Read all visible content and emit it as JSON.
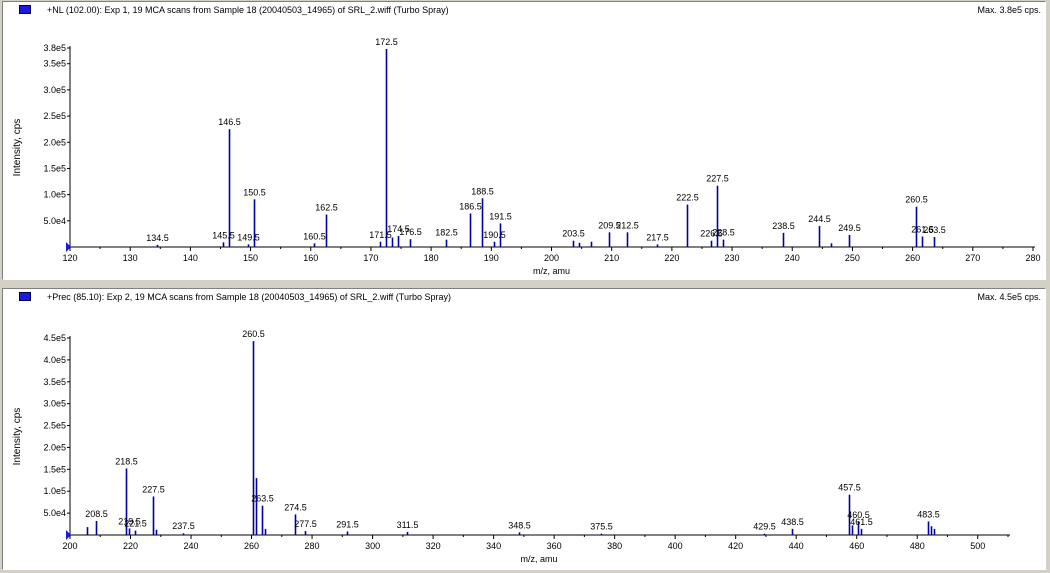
{
  "colors": {
    "peak": "#0000a0",
    "axis": "#000000",
    "label": "#000000",
    "marker": "#1a1ae0"
  },
  "panels": [
    {
      "header": {
        "title": "+NL (102.00): Exp 1, 19 MCA scans from Sample 18 (20040503_14965) of SRL_2.wiff (Turbo Spray)",
        "max": "Max. 3.8e5 cps."
      },
      "ylabel": "Intensity, cps",
      "xlabel": "m/z, amu"
    },
    {
      "header": {
        "title": "+Prec (85.10): Exp 2, 19 MCA scans from Sample 18 (20040503_14965) of SRL_2.wiff (Turbo Spray)",
        "max": "Max. 4.5e5 cps."
      },
      "ylabel": "Intensity, cps",
      "xlabel": "m/z, amu"
    }
  ],
  "chart_data": [
    {
      "type": "bar",
      "title": "+NL (102.00): Exp 1, 19 MCA scans from Sample 18 (20040503_14965) of SRL_2.wiff (Turbo Spray)",
      "xlabel": "m/z, amu",
      "ylabel": "Intensity, cps",
      "xlim": [
        120,
        280
      ],
      "ylim": [
        0,
        380000
      ],
      "x_ticks": [
        120,
        130,
        140,
        150,
        160,
        170,
        180,
        190,
        200,
        210,
        220,
        230,
        240,
        250,
        260,
        270,
        280
      ],
      "y_ticks": [
        {
          "v": 50000,
          "label": "5.0e4"
        },
        {
          "v": 100000,
          "label": "1.0e5"
        },
        {
          "v": 150000,
          "label": "1.5e5"
        },
        {
          "v": 200000,
          "label": "2.0e5"
        },
        {
          "v": 250000,
          "label": "2.5e5"
        },
        {
          "v": 300000,
          "label": "3.0e5"
        },
        {
          "v": 350000,
          "label": "3.5e5"
        },
        {
          "v": 380000,
          "label": "3.8e5"
        }
      ],
      "peaks": [
        {
          "x": 134.5,
          "y": 4000,
          "label": "134.5"
        },
        {
          "x": 145.5,
          "y": 9000,
          "label": "145.5"
        },
        {
          "x": 146.5,
          "y": 225000,
          "label": "146.5"
        },
        {
          "x": 149.5,
          "y": 5000,
          "label": "149.5"
        },
        {
          "x": 150.5,
          "y": 91000,
          "label": "150.5"
        },
        {
          "x": 160.5,
          "y": 7000,
          "label": "160.5"
        },
        {
          "x": 162.5,
          "y": 62000,
          "label": "162.5"
        },
        {
          "x": 171.5,
          "y": 10000,
          "label": "171.5"
        },
        {
          "x": 172.5,
          "y": 378000,
          "label": "172.5"
        },
        {
          "x": 173.5,
          "y": 18000
        },
        {
          "x": 174.5,
          "y": 21000,
          "label": "174.5"
        },
        {
          "x": 176.5,
          "y": 15000,
          "label": "176.5"
        },
        {
          "x": 182.5,
          "y": 14000,
          "label": "182.5"
        },
        {
          "x": 186.5,
          "y": 64000,
          "label": "186.5"
        },
        {
          "x": 188.5,
          "y": 93000,
          "label": "188.5"
        },
        {
          "x": 190.5,
          "y": 10000,
          "label": "190.5"
        },
        {
          "x": 191.5,
          "y": 45000,
          "label": "191.5"
        },
        {
          "x": 203.5,
          "y": 12000,
          "label": "203.5"
        },
        {
          "x": 204.5,
          "y": 8000
        },
        {
          "x": 206.5,
          "y": 10000
        },
        {
          "x": 209.5,
          "y": 28000,
          "label": "209.5"
        },
        {
          "x": 212.5,
          "y": 28000,
          "label": "212.5"
        },
        {
          "x": 217.5,
          "y": 5000,
          "label": "217.5"
        },
        {
          "x": 222.5,
          "y": 81000,
          "label": "222.5"
        },
        {
          "x": 226.5,
          "y": 12000,
          "label": "226.5"
        },
        {
          "x": 227.5,
          "y": 117000,
          "label": "227.5"
        },
        {
          "x": 228.5,
          "y": 14000,
          "label": "228.5"
        },
        {
          "x": 238.5,
          "y": 27000,
          "label": "238.5"
        },
        {
          "x": 244.5,
          "y": 40000,
          "label": "244.5"
        },
        {
          "x": 246.5,
          "y": 7000
        },
        {
          "x": 249.5,
          "y": 23000,
          "label": "249.5"
        },
        {
          "x": 260.5,
          "y": 77000,
          "label": "260.5"
        },
        {
          "x": 261.5,
          "y": 20000,
          "label": "261.5"
        },
        {
          "x": 263.5,
          "y": 19000,
          "label": "263.5"
        }
      ]
    },
    {
      "type": "bar",
      "title": "+Prec (85.10): Exp 2, 19 MCA scans from Sample 18 (20040503_14965) of SRL_2.wiff (Turbo Spray)",
      "xlabel": "m/z, amu",
      "ylabel": "Intensity, cps",
      "xlim": [
        200,
        510
      ],
      "ylim": [
        0,
        450000
      ],
      "x_ticks": [
        200,
        220,
        240,
        260,
        280,
        300,
        320,
        340,
        360,
        380,
        400,
        420,
        440,
        460,
        480,
        500
      ],
      "y_ticks": [
        {
          "v": 50000,
          "label": "5.0e4"
        },
        {
          "v": 100000,
          "label": "1.0e5"
        },
        {
          "v": 150000,
          "label": "1.5e5"
        },
        {
          "v": 200000,
          "label": "2.0e5"
        },
        {
          "v": 250000,
          "label": "2.5e5"
        },
        {
          "v": 300000,
          "label": "3.0e5"
        },
        {
          "v": 350000,
          "label": "3.5e5"
        },
        {
          "v": 400000,
          "label": "4.0e5"
        },
        {
          "v": 450000,
          "label": "4.5e5"
        }
      ],
      "peaks": [
        {
          "x": 205.5,
          "y": 18000
        },
        {
          "x": 208.5,
          "y": 32000,
          "label": "208.5"
        },
        {
          "x": 218.5,
          "y": 152000,
          "label": "218.5"
        },
        {
          "x": 219.5,
          "y": 15000,
          "label": "219.5"
        },
        {
          "x": 221.5,
          "y": 10000,
          "label": "221.5"
        },
        {
          "x": 227.5,
          "y": 88000,
          "label": "227.5"
        },
        {
          "x": 228.5,
          "y": 12000
        },
        {
          "x": 237.5,
          "y": 4000,
          "label": "237.5"
        },
        {
          "x": 260.5,
          "y": 443000,
          "label": "260.5"
        },
        {
          "x": 261.5,
          "y": 130000
        },
        {
          "x": 263.5,
          "y": 67000,
          "label": "263.5"
        },
        {
          "x": 264.5,
          "y": 14000
        },
        {
          "x": 274.5,
          "y": 47000,
          "label": "274.5"
        },
        {
          "x": 277.5,
          "y": 9000,
          "label": "277.5"
        },
        {
          "x": 291.5,
          "y": 8000,
          "label": "291.5"
        },
        {
          "x": 311.5,
          "y": 7000,
          "label": "311.5"
        },
        {
          "x": 348.5,
          "y": 6000,
          "label": "348.5"
        },
        {
          "x": 375.5,
          "y": 3000,
          "label": "375.5"
        },
        {
          "x": 429.5,
          "y": 3000,
          "label": "429.5"
        },
        {
          "x": 438.5,
          "y": 14000,
          "label": "438.5"
        },
        {
          "x": 457.5,
          "y": 92000,
          "label": "457.5"
        },
        {
          "x": 458.5,
          "y": 22000
        },
        {
          "x": 460.5,
          "y": 30000,
          "label": "460.5"
        },
        {
          "x": 461.5,
          "y": 14000,
          "label": "461.5"
        },
        {
          "x": 483.5,
          "y": 31000,
          "label": "483.5"
        },
        {
          "x": 484.5,
          "y": 20000
        },
        {
          "x": 485.5,
          "y": 14000
        }
      ]
    }
  ]
}
